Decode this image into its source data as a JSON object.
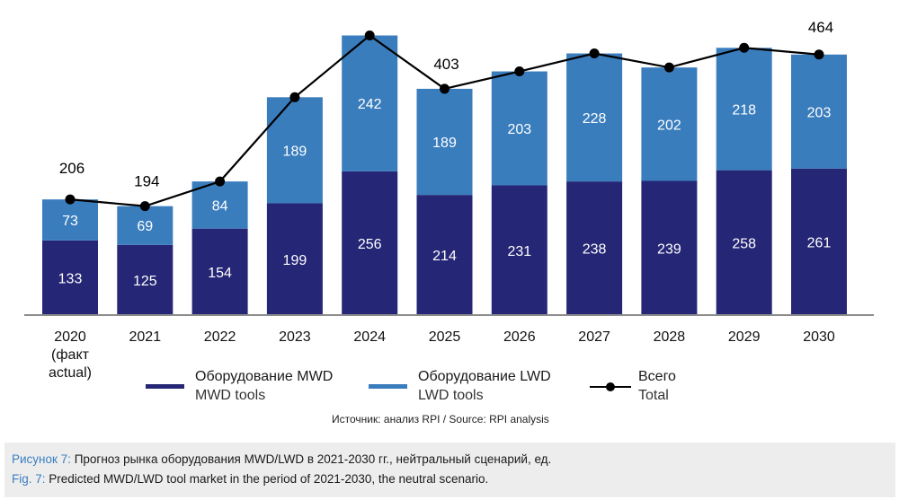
{
  "chart_data": {
    "type": "bar",
    "stacked": true,
    "title": "",
    "xlabel": "",
    "ylabel": "",
    "ylim": [
      0,
      500
    ],
    "grid": false,
    "categories": [
      "2020\n(факт\nactual)",
      "2021",
      "2022",
      "2023",
      "2024",
      "2025",
      "2026",
      "2027",
      "2028",
      "2029",
      "2030"
    ],
    "series": [
      {
        "name": "Оборудование MWD / MWD tools",
        "type": "bar",
        "color": "#252675",
        "values": [
          133,
          125,
          154,
          199,
          256,
          214,
          231,
          238,
          239,
          258,
          261
        ]
      },
      {
        "name": "Оборудование LWD / LWD tools",
        "type": "bar",
        "color": "#3a7dbd",
        "values": [
          73,
          69,
          84,
          189,
          242,
          189,
          203,
          228,
          202,
          218,
          203
        ]
      },
      {
        "name": "Всего / Total",
        "type": "line",
        "color": "#000000",
        "values": [
          206,
          194,
          238,
          388,
          498,
          403,
          434,
          466,
          441,
          476,
          464
        ]
      }
    ],
    "total_labels_shown": {
      "0": "206",
      "1": "194",
      "5": "403",
      "10": "464"
    },
    "legend_position": "bottom"
  },
  "legend": [
    {
      "ru": "Оборудование MWD",
      "en": "MWD tools",
      "color": "#252675",
      "kind": "bar"
    },
    {
      "ru": "Оборудование LWD",
      "en": "LWD tools",
      "color": "#3a7dbd",
      "kind": "bar"
    },
    {
      "ru": "Всего",
      "en": "Total",
      "color": "#000000",
      "kind": "line"
    }
  ],
  "source": "Источник: анализ RPI / Source: RPI analysis",
  "caption": {
    "ru_label": "Рисунок 7:",
    "ru_text": " Прогноз рынка оборудования MWD/LWD в 2021-2030 гг., нейтральный сценарий, ед.",
    "en_label": "Fig. 7:",
    "en_text": " Predicted MWD/LWD tool market in the period of 2021-2030, the neutral scenario."
  }
}
